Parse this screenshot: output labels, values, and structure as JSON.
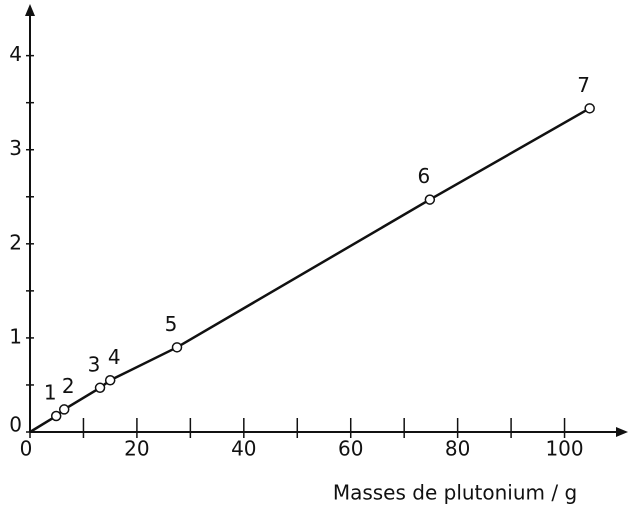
{
  "chart_data": {
    "type": "scatter",
    "x_label": "Masses de plutonium / g",
    "x": [
      4.9,
      6.4,
      13.1,
      15.0,
      27.5,
      74.8,
      104.7
    ],
    "values": [
      0.17,
      0.24,
      0.47,
      0.55,
      0.9,
      2.47,
      3.44
    ],
    "labels": [
      "1",
      "2",
      "3",
      "4",
      "5",
      "6",
      "7"
    ],
    "color": "#111111",
    "xlim": [
      0,
      110
    ],
    "xticks": [
      0,
      20,
      40,
      60,
      80,
      100
    ],
    "xminorticks": [
      10,
      30,
      50,
      70,
      90
    ],
    "ylim": [
      0,
      4.4
    ],
    "yticks": [
      0,
      1,
      2,
      3,
      4
    ],
    "yminorticks": [
      0.5,
      1.5,
      2.5,
      3.5
    ]
  }
}
